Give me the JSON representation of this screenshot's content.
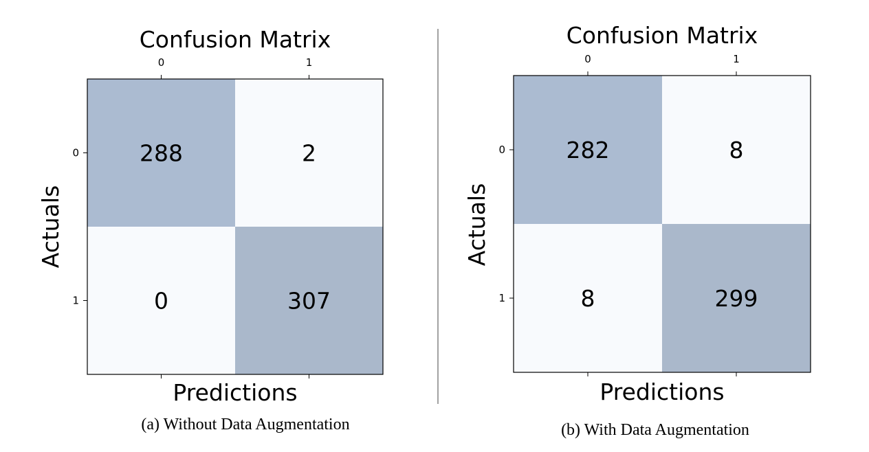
{
  "chart_data": [
    {
      "type": "heatmap",
      "title": "Confusion Matrix",
      "xlabel": "Predictions",
      "ylabel": "Actuals",
      "x_tick_labels": [
        "0",
        "1"
      ],
      "y_tick_labels": [
        "0",
        "1"
      ],
      "values": [
        [
          288,
          2
        ],
        [
          0,
          307
        ]
      ],
      "caption": "(a) Without Data Augmentation",
      "colors": {
        "high": "#abbbd1",
        "high_alt": "#aab8cb",
        "low": "#f8fafd"
      }
    },
    {
      "type": "heatmap",
      "title": "Confusion Matrix",
      "xlabel": "Predictions",
      "ylabel": "Actuals",
      "x_tick_labels": [
        "0",
        "1"
      ],
      "y_tick_labels": [
        "0",
        "1"
      ],
      "values": [
        [
          282,
          8
        ],
        [
          8,
          299
        ]
      ],
      "caption": "(b) With Data Augmentation",
      "colors": {
        "high": "#abbbd1",
        "high_alt": "#aab8cb",
        "low": "#f8fafd"
      }
    }
  ]
}
